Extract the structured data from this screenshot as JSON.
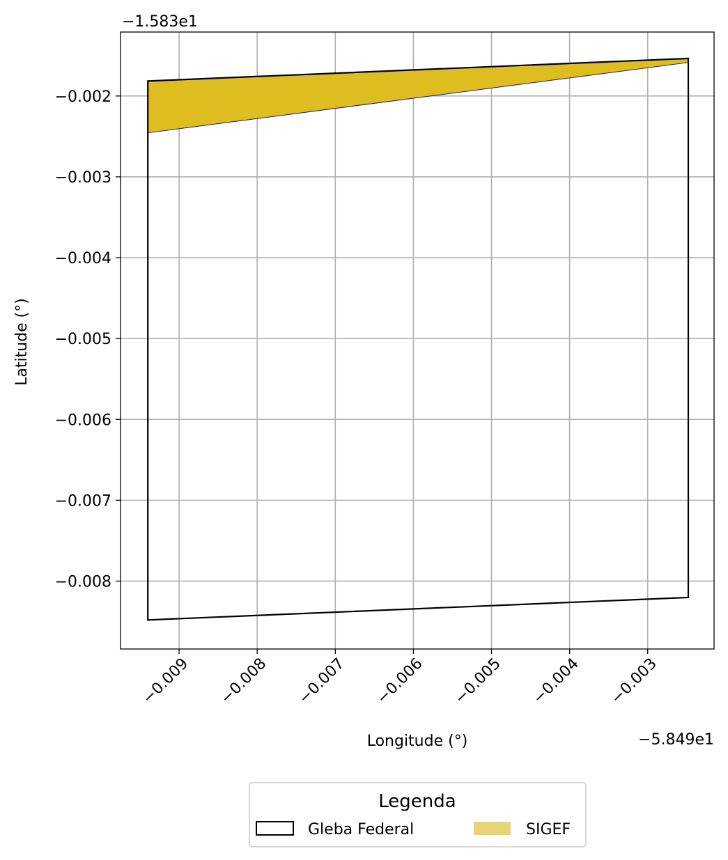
{
  "chart_data": {
    "type": "map",
    "xlabel": "Longitude (°)",
    "ylabel": "Latitude (°)",
    "x_offset_label": "−5.849e1",
    "y_offset_label": "−1.583e1",
    "xlim": [
      -0.00975,
      -0.00215
    ],
    "ylim": [
      -0.00884,
      -0.001209
    ],
    "xticks": [
      -0.009,
      -0.008,
      -0.007,
      -0.006,
      -0.005,
      -0.004,
      -0.003
    ],
    "xtick_labels": [
      "−0.009",
      "−0.008",
      "−0.007",
      "−0.006",
      "−0.005",
      "−0.004",
      "−0.003"
    ],
    "yticks": [
      -0.002,
      -0.003,
      -0.004,
      -0.005,
      -0.006,
      -0.007,
      -0.008
    ],
    "ytick_labels": [
      "−0.002",
      "−0.003",
      "−0.004",
      "−0.005",
      "−0.006",
      "−0.007",
      "−0.008"
    ],
    "grid": true,
    "legend": {
      "title": "Legenda",
      "placement": "bottom-center",
      "entries": [
        "Gleba Federal",
        "SIGEF"
      ]
    },
    "polygons": [
      {
        "name": "Gleba Federal",
        "fill": "none",
        "edge": "#000000",
        "coords": [
          [
            -0.0094,
            -0.001815
          ],
          [
            -0.00248,
            -0.001535
          ],
          [
            -0.00248,
            -0.008203
          ],
          [
            -0.0094,
            -0.008481
          ]
        ]
      },
      {
        "name": "SIGEF",
        "fill": "#debd20",
        "legend_fill": "#e8d375",
        "edge": "#1a1a8c",
        "coords": [
          [
            -0.0094,
            -0.001815
          ],
          [
            -0.00248,
            -0.001535
          ],
          [
            -0.00248,
            -0.001585
          ],
          [
            -0.0094,
            -0.002455
          ]
        ]
      }
    ]
  }
}
